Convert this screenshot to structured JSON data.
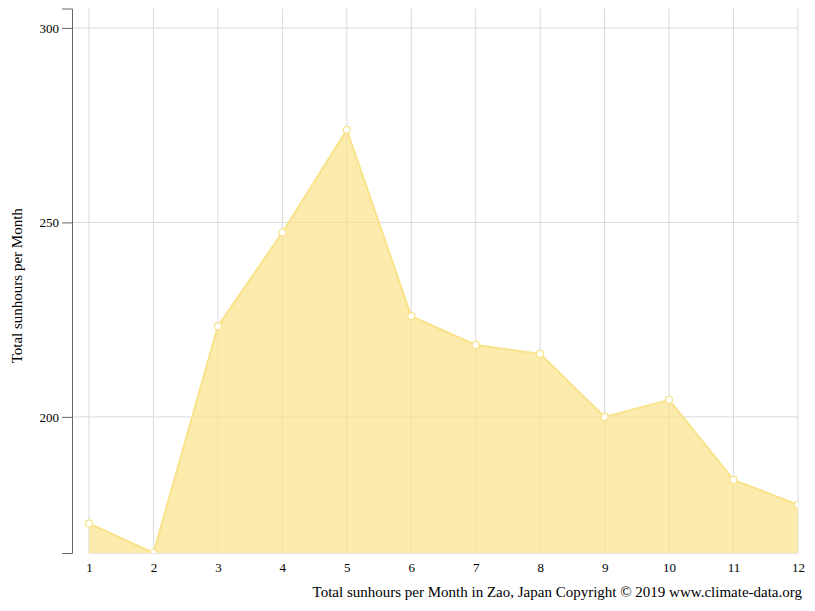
{
  "chart_data": {
    "type": "area",
    "xlabel": "Total sunhours per Month in Zao, Japan Copyright © 2019 www.climate-data.org",
    "ylabel": "Total sunhours per Month",
    "categories": [
      "1",
      "2",
      "3",
      "4",
      "5",
      "6",
      "7",
      "8",
      "9",
      "10",
      "11",
      "12"
    ],
    "values": [
      172.6,
      165,
      223.3,
      247.4,
      273.8,
      225.9,
      218.5,
      216.2,
      200,
      204.4,
      183.8,
      177.4
    ],
    "color": "#f9e38a",
    "marker": "circle",
    "ylim": [
      165,
      305
    ],
    "yticks": [
      200,
      250,
      300
    ],
    "grid": true
  }
}
